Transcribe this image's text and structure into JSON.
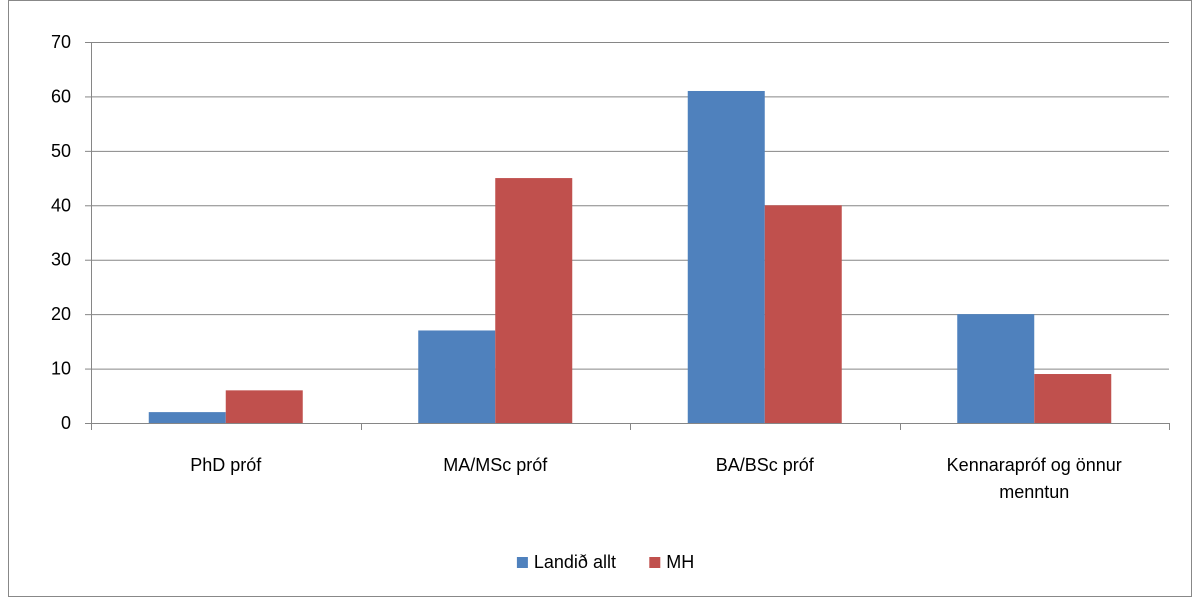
{
  "chart_data": {
    "type": "bar",
    "title": "",
    "xlabel": "",
    "ylabel": "",
    "categories": [
      [
        "PhD próf"
      ],
      [
        "MA/MSc próf"
      ],
      [
        "BA/BSc próf"
      ],
      [
        "Kennarapróf og önnur",
        "menntun"
      ]
    ],
    "series": [
      {
        "name": "Landið allt",
        "color": "#4f81bd",
        "values": [
          2,
          17,
          61,
          20
        ]
      },
      {
        "name": "MH",
        "color": "#c0504d",
        "values": [
          6,
          45,
          40,
          9
        ]
      }
    ],
    "ylim": [
      0,
      70
    ],
    "yticks": [
      0,
      10,
      20,
      30,
      40,
      50,
      60,
      70
    ],
    "grid": true,
    "legend_position": "bottom"
  }
}
